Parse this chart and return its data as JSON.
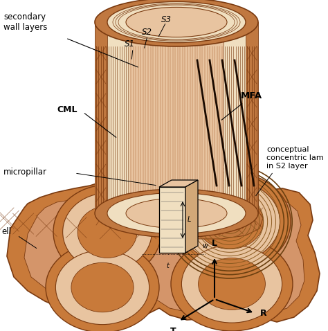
{
  "bg_color": "#ffffff",
  "c_outer": "#c87a3a",
  "c_mid": "#cc8855",
  "c_wall": "#d4956a",
  "c_light": "#e8c4a0",
  "c_cream": "#f0dfc0",
  "c_inner": "#e8c090",
  "c_lumen": "#c87a3a",
  "c_dark": "#7a3a10",
  "c_brown": "#a05020",
  "c_tan": "#d2a878",
  "c_concentric": "#7a5025",
  "c_hatch": "#c07840",
  "labels": {
    "secondary_wall": "secondary\nwall layers",
    "S3": "S3",
    "S2": "S2",
    "S1": "S1",
    "CML": "CML",
    "MFA": "MFA",
    "micropillar": "micropillar",
    "cell_wall": "ell",
    "conceptual": "conceptual\nconcentric lam\nin S2 layer",
    "L_axis": "L",
    "T_axis": "T",
    "R_axis": "R"
  },
  "fig_width": 4.74,
  "fig_height": 4.78,
  "dpi": 100
}
